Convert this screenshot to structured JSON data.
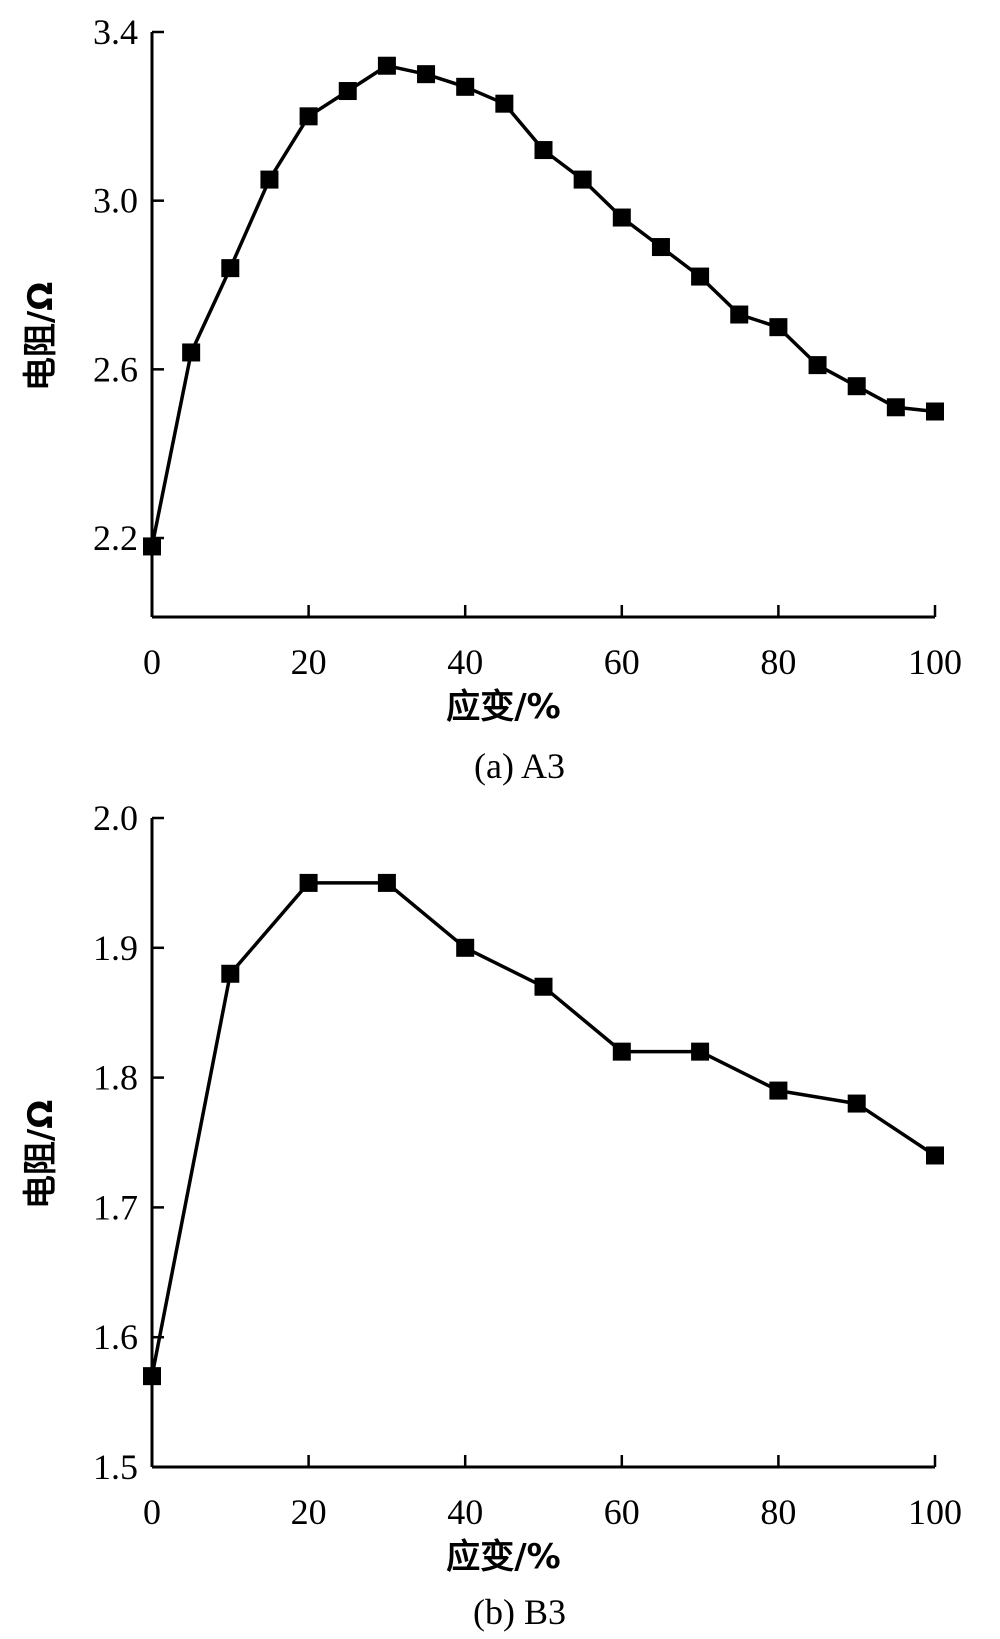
{
  "chart_data": [
    {
      "type": "line",
      "caption": "(a) A3",
      "xlabel": "应变/%",
      "ylabel": "电阻/Ω",
      "xlim": [
        0,
        100
      ],
      "ylim": [
        1.98,
        3.4
      ],
      "xticks": [
        "0",
        "20",
        "40",
        "60",
        "80",
        "100"
      ],
      "yticks": [
        "2.2",
        "2.6",
        "3.0",
        "3.4"
      ],
      "grid": false,
      "legend": "none",
      "series": [
        {
          "marker": "square",
          "color": "#000000",
          "x": [
            0,
            5,
            10,
            15,
            20,
            25,
            30,
            35,
            40,
            45,
            50,
            55,
            60,
            65,
            70,
            75,
            80,
            85,
            90,
            95,
            100
          ],
          "y": [
            2.18,
            2.64,
            2.84,
            3.05,
            3.2,
            3.26,
            3.32,
            3.3,
            3.27,
            3.23,
            3.12,
            3.05,
            2.96,
            2.89,
            2.82,
            2.73,
            2.7,
            2.61,
            2.56,
            2.51,
            2.5
          ]
        }
      ]
    },
    {
      "type": "line",
      "caption": "(b) B3",
      "xlabel": "应变/%",
      "ylabel": "电阻/Ω",
      "xlim": [
        0,
        100
      ],
      "ylim": [
        1.5,
        2.0
      ],
      "xticks": [
        "0",
        "20",
        "40",
        "60",
        "80",
        "100"
      ],
      "yticks": [
        "1.5",
        "1.6",
        "1.7",
        "1.8",
        "1.9",
        "2.0"
      ],
      "grid": false,
      "legend": "none",
      "series": [
        {
          "marker": "square",
          "color": "#000000",
          "x": [
            0,
            10,
            20,
            30,
            40,
            50,
            60,
            70,
            80,
            90,
            100
          ],
          "y": [
            1.57,
            1.88,
            1.95,
            1.95,
            1.9,
            1.87,
            1.82,
            1.82,
            1.79,
            1.78,
            1.74
          ]
        }
      ]
    }
  ]
}
